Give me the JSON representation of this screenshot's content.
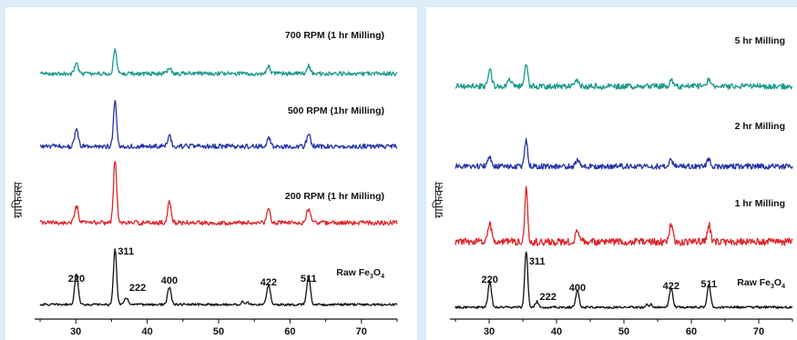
{
  "colors": {
    "teal": "#1a9a8c",
    "blue": "#2334a8",
    "red": "#e0252a",
    "black": "#111111"
  },
  "chart_data": [
    {
      "type": "line",
      "ylabel": "ग्राफिक्स",
      "xlim": [
        25,
        75
      ],
      "x_ticks": [
        30,
        40,
        50,
        60,
        70
      ],
      "peaks": [
        {
          "label": "220",
          "x": 30.1
        },
        {
          "label": "311",
          "x": 35.5
        },
        {
          "label": "222",
          "x": 37.1
        },
        {
          "label": "400",
          "x": 43.1
        },
        {
          "label": "422",
          "x": 57.0
        },
        {
          "label": "511",
          "x": 62.6
        }
      ],
      "series": [
        {
          "name": "Raw Fe3O4",
          "name_main": "Raw Fe",
          "name_sub": "3",
          "name_tail": "O",
          "name_sub2": "4",
          "color": "#111111",
          "peak_heights": [
            0.55,
            1.0,
            0.12,
            0.3,
            0.35,
            0.5
          ],
          "noise": 0.04
        },
        {
          "name": "200 RPM (1 hr Milling)",
          "color": "#e0252a",
          "peak_heights": [
            0.25,
            1.0,
            0.0,
            0.32,
            0.2,
            0.23
          ],
          "noise": 0.07
        },
        {
          "name": "500 RPM (1hr Milling)",
          "color": "#2334a8",
          "peak_heights": [
            0.3,
            0.85,
            0.0,
            0.2,
            0.15,
            0.22
          ],
          "noise": 0.09
        },
        {
          "name": "700 RPM (1 hr Milling)",
          "color": "#1a9a8c",
          "peak_heights": [
            0.22,
            0.55,
            0.0,
            0.12,
            0.15,
            0.17
          ],
          "noise": 0.09
        }
      ]
    },
    {
      "type": "line",
      "ylabel": "ग्राफिक्स",
      "xlim": [
        25,
        75
      ],
      "x_ticks": [
        30,
        40,
        50,
        60,
        70
      ],
      "peaks": [
        {
          "label": "220",
          "x": 30.1
        },
        {
          "label": "311",
          "x": 35.5
        },
        {
          "label": "222",
          "x": 37.1
        },
        {
          "label": "400",
          "x": 43.1
        },
        {
          "label": "422",
          "x": 57.0
        },
        {
          "label": "511",
          "x": 62.6
        }
      ],
      "series": [
        {
          "name": "Raw Fe3O4",
          "name_main": "Raw Fe",
          "name_sub": "3",
          "name_tail": "O",
          "name_sub2": "4",
          "color": "#111111",
          "peak_heights": [
            0.45,
            1.0,
            0.1,
            0.3,
            0.35,
            0.4
          ],
          "noise": 0.04
        },
        {
          "name": "1 hr Milling",
          "color": "#e0252a",
          "peak_heights": [
            0.3,
            0.85,
            0.0,
            0.2,
            0.25,
            0.28
          ],
          "noise": 0.12
        },
        {
          "name": "2 hr Milling",
          "color": "#2334a8",
          "peak_heights": [
            0.22,
            0.6,
            0.0,
            0.12,
            0.15,
            0.18
          ],
          "noise": 0.12
        },
        {
          "name": "5 hr Milling",
          "color": "#1a9a8c",
          "peak_heights": [
            0.45,
            0.55,
            0.0,
            0.15,
            0.15,
            0.2
          ],
          "noise": 0.14
        }
      ]
    }
  ]
}
